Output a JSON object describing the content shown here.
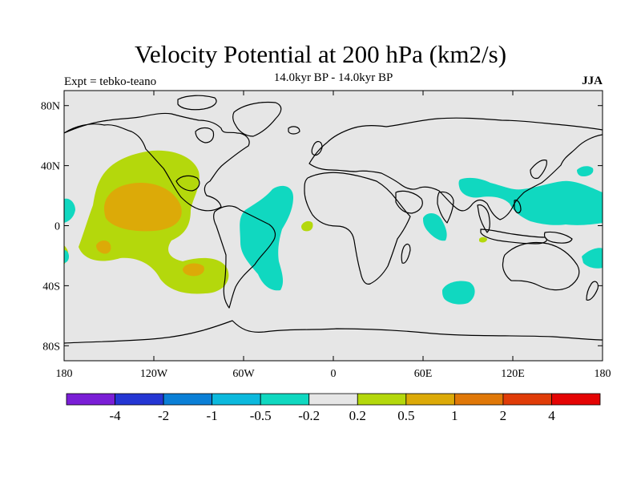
{
  "header": {
    "title": "Velocity Potential at 200 hPa (km2/s)",
    "subtitle": "14.0kyr BP - 14.0kyr BP",
    "experiment": "Expt = tebko-teano",
    "season": "JJA"
  },
  "map": {
    "projection": "cylindrical-equidistant",
    "lon_range": [
      -180,
      180
    ],
    "lat_range": [
      -90,
      90
    ],
    "lat_ticks": [
      {
        "value": 80,
        "label": "80N"
      },
      {
        "value": 40,
        "label": "40N"
      },
      {
        "value": 0,
        "label": "0"
      },
      {
        "value": -40,
        "label": "40S"
      },
      {
        "value": -80,
        "label": "80S"
      }
    ],
    "lon_ticks": [
      {
        "value": -180,
        "label": "180"
      },
      {
        "value": -120,
        "label": "120W"
      },
      {
        "value": -60,
        "label": "60W"
      },
      {
        "value": 0,
        "label": "0"
      },
      {
        "value": 60,
        "label": "60E"
      },
      {
        "value": 120,
        "label": "120E"
      },
      {
        "value": 180,
        "label": "180"
      }
    ],
    "background_color": "#e6e6e6"
  },
  "colorbar": {
    "labels": [
      "-4",
      "-2",
      "-1",
      "-0.5",
      "-0.2",
      "0.2",
      "0.5",
      "1",
      "2",
      "4"
    ],
    "colors": [
      "#7a1ed6",
      "#2436d3",
      "#0a7fd6",
      "#0cb9dd",
      "#10d8c0",
      "#e6e6e6",
      "#b4d80c",
      "#dcaa08",
      "#e07808",
      "#e03c08",
      "#e40404"
    ]
  },
  "chart_data": {
    "type": "contour-map",
    "title": "Velocity Potential at 200 hPa (km2/s)",
    "units": "km2/s",
    "levels": [
      -4,
      -2,
      -1,
      -0.5,
      -0.2,
      0.2,
      0.5,
      1,
      2,
      4
    ],
    "regions": [
      {
        "name": "eastern-north-pacific",
        "range": "0.2 to 0.5",
        "center_lon": -125,
        "center_lat": 12
      },
      {
        "name": "eastern-north-pacific-core",
        "range": "0.5 to 1",
        "center_lon": -127,
        "center_lat": 10
      },
      {
        "name": "south-pacific-small-core-west",
        "range": "0.5 to 1",
        "center_lon": -164,
        "center_lat": -14
      },
      {
        "name": "south-pacific-small-core-east",
        "range": "0.5 to 1",
        "center_lon": -98,
        "center_lat": -30
      },
      {
        "name": "tropical-atlantic",
        "range": "-0.5 to -0.2",
        "center_lon": -45,
        "center_lat": -5
      },
      {
        "name": "western-north-pacific",
        "range": "-0.5 to -0.2",
        "center_lon": 148,
        "center_lat": 8
      },
      {
        "name": "arabian-sea",
        "range": "-0.5 to -0.2",
        "center_lon": 68,
        "center_lat": 0
      },
      {
        "name": "southern-indian-ocean",
        "range": "-0.5 to -0.2",
        "center_lon": 83,
        "center_lat": -44
      }
    ]
  }
}
